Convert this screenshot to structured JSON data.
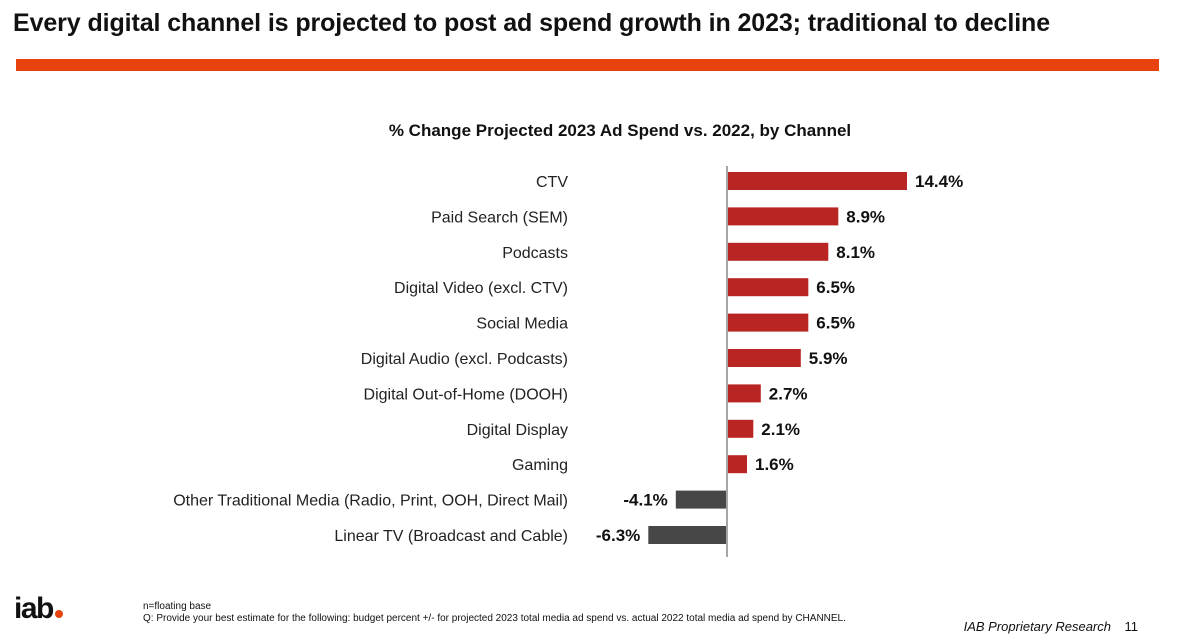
{
  "slide": {
    "headline": "Every digital channel is projected to post ad spend growth in 2023; traditional to decline",
    "accent_color": "#E8420E",
    "logo_text": "iab",
    "footnote_base": "n=floating base",
    "footnote_question": "Q: Provide your best estimate for the following: budget percent +/- for projected 2023 total media ad spend vs. actual 2022 total media ad spend by CHANNEL.",
    "source": "IAB Proprietary Research",
    "page_number": "11"
  },
  "chart_data": {
    "type": "bar",
    "orientation": "horizontal",
    "title": "% Change Projected 2023 Ad Spend vs. 2022, by Channel",
    "xlabel": "",
    "ylabel": "",
    "unit": "%",
    "xlim": [
      -6.3,
      14.4
    ],
    "grid": false,
    "positive_color": "#B92523",
    "negative_color": "#474747",
    "axis_color": "#A6A6A6",
    "categories": [
      "CTV",
      "Paid Search (SEM)",
      "Podcasts",
      "Digital Video (excl. CTV)",
      "Social Media",
      "Digital Audio (excl. Podcasts)",
      "Digital Out-of-Home (DOOH)",
      "Digital Display",
      "Gaming",
      "Other Traditional Media (Radio, Print, OOH, Direct Mail)",
      "Linear TV (Broadcast and Cable)"
    ],
    "values": [
      14.4,
      8.9,
      8.1,
      6.5,
      6.5,
      5.9,
      2.7,
      2.1,
      1.6,
      -4.1,
      -6.3
    ],
    "value_labels": [
      "14.4%",
      "8.9%",
      "8.1%",
      "6.5%",
      "6.5%",
      "5.9%",
      "2.7%",
      "2.1%",
      "1.6%",
      "-4.1%",
      "-6.3%"
    ]
  }
}
